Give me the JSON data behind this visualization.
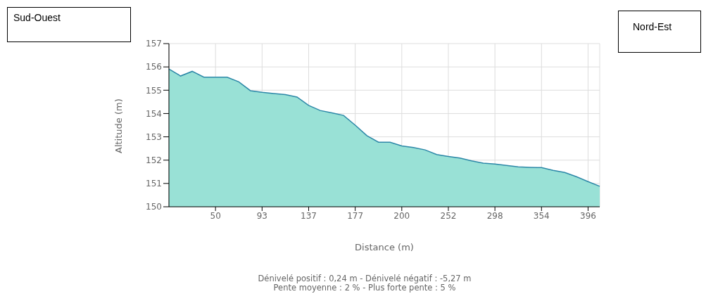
{
  "chart_data": {
    "type": "area",
    "xlabel": "Distance (m)",
    "ylabel": "Altitude (m)",
    "categories": [
      null,
      null,
      null,
      null,
      "50",
      null,
      null,
      null,
      "93",
      null,
      null,
      null,
      "137",
      null,
      null,
      null,
      "177",
      null,
      null,
      null,
      "200",
      null,
      null,
      null,
      "252",
      null,
      null,
      null,
      "298",
      null,
      null,
      null,
      "354",
      null,
      null,
      null,
      "396",
      null
    ],
    "series": [
      {
        "color": "#99e1d6",
        "values": [
          155.91,
          155.61,
          155.81,
          155.56,
          155.56,
          155.56,
          155.36,
          154.98,
          154.91,
          154.86,
          154.81,
          154.71,
          154.35,
          154.13,
          154.03,
          153.92,
          153.5,
          153.05,
          152.77,
          152.77,
          152.61,
          152.54,
          152.44,
          152.24,
          152.16,
          152.09,
          151.97,
          151.87,
          151.83,
          151.77,
          151.71,
          151.69,
          151.68,
          151.56,
          151.47,
          151.29,
          151.08,
          150.88
        ]
      }
    ],
    "ylim": [
      150,
      157
    ],
    "yticks": [
      150,
      151,
      152,
      153,
      154,
      155,
      156,
      157
    ],
    "grid": true,
    "annotations": [
      "Sud-Ouest",
      "Nord-Est",
      "Dénivelé positif : 0,24 m - Dénivelé négatif : -5,27 m",
      "Pente moyenne : 2 % - Plus forte pente : 5 %"
    ]
  }
}
